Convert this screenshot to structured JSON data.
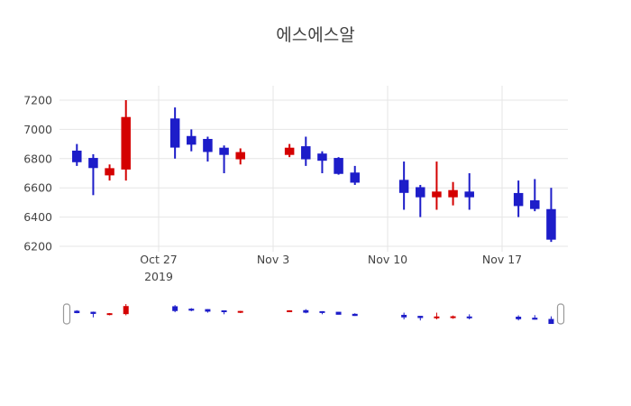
{
  "chart_data": {
    "type": "candlestick",
    "title": "에스에스알",
    "increasing_color": "#d40000",
    "decreasing_color": "#1d1dc9",
    "grid_color": "#e6e6e6",
    "background": "#ffffff",
    "legend": "none",
    "rangeslider": true,
    "ylim": [
      6150,
      7280
    ],
    "y_axis": {
      "ticks": [
        6200,
        6400,
        6600,
        6800,
        7000,
        7200
      ]
    },
    "x_axis": {
      "ticks": [
        {
          "label": "Oct 27",
          "sublabel": "2019",
          "date": "2019-10-27"
        },
        {
          "label": "Nov 3",
          "date": "2019-11-03"
        },
        {
          "label": "Nov 10",
          "date": "2019-11-10"
        },
        {
          "label": "Nov 17",
          "date": "2019-11-17"
        }
      ]
    },
    "candles": [
      {
        "date": "2019-10-22",
        "open": 6850,
        "high": 6900,
        "low": 6750,
        "close": 6780
      },
      {
        "date": "2019-10-23",
        "open": 6800,
        "high": 6830,
        "low": 6550,
        "close": 6740
      },
      {
        "date": "2019-10-24",
        "open": 6690,
        "high": 6760,
        "low": 6650,
        "close": 6730
      },
      {
        "date": "2019-10-25",
        "open": 6730,
        "high": 7200,
        "low": 6650,
        "close": 7080
      },
      {
        "date": "2019-10-28",
        "open": 7070,
        "high": 7150,
        "low": 6800,
        "close": 6880
      },
      {
        "date": "2019-10-29",
        "open": 6950,
        "high": 7000,
        "low": 6850,
        "close": 6900
      },
      {
        "date": "2019-10-30",
        "open": 6930,
        "high": 6950,
        "low": 6780,
        "close": 6850
      },
      {
        "date": "2019-10-31",
        "open": 6870,
        "high": 6890,
        "low": 6700,
        "close": 6830
      },
      {
        "date": "2019-11-01",
        "open": 6800,
        "high": 6870,
        "low": 6760,
        "close": 6840
      },
      {
        "date": "2019-11-04",
        "open": 6830,
        "high": 6900,
        "low": 6810,
        "close": 6870
      },
      {
        "date": "2019-11-05",
        "open": 6880,
        "high": 6950,
        "low": 6750,
        "close": 6800
      },
      {
        "date": "2019-11-06",
        "open": 6830,
        "high": 6850,
        "low": 6700,
        "close": 6790
      },
      {
        "date": "2019-11-07",
        "open": 6800,
        "high": 6810,
        "low": 6690,
        "close": 6700
      },
      {
        "date": "2019-11-08",
        "open": 6700,
        "high": 6750,
        "low": 6620,
        "close": 6640
      },
      {
        "date": "2019-11-11",
        "open": 6650,
        "high": 6780,
        "low": 6450,
        "close": 6570
      },
      {
        "date": "2019-11-12",
        "open": 6600,
        "high": 6620,
        "low": 6400,
        "close": 6540
      },
      {
        "date": "2019-11-13",
        "open": 6540,
        "high": 6780,
        "low": 6450,
        "close": 6570
      },
      {
        "date": "2019-11-14",
        "open": 6540,
        "high": 6640,
        "low": 6480,
        "close": 6580
      },
      {
        "date": "2019-11-15",
        "open": 6570,
        "high": 6700,
        "low": 6450,
        "close": 6540
      },
      {
        "date": "2019-11-18",
        "open": 6560,
        "high": 6650,
        "low": 6400,
        "close": 6480
      },
      {
        "date": "2019-11-19",
        "open": 6510,
        "high": 6660,
        "low": 6440,
        "close": 6460
      },
      {
        "date": "2019-11-20",
        "open": 6450,
        "high": 6600,
        "low": 6230,
        "close": 6250
      }
    ]
  }
}
